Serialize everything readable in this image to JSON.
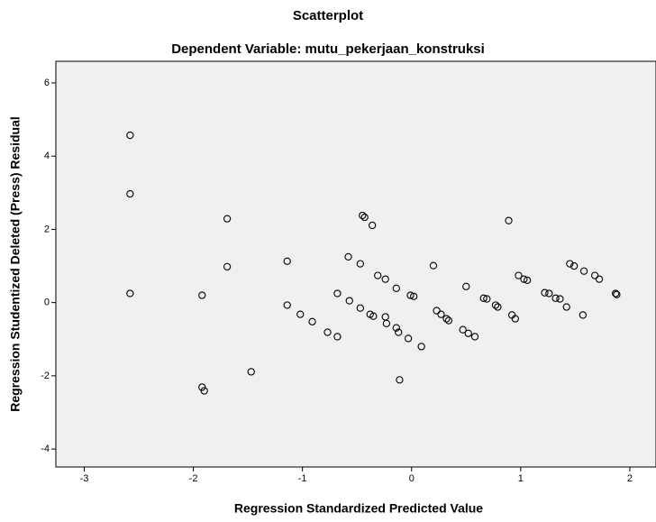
{
  "chart_data": {
    "type": "scatter",
    "title": "Scatterplot",
    "subtitle": "Dependent Variable: mutu_pekerjaan_konstruksi",
    "x_label": "Regression Standardized Predicted Value",
    "y_label": "Regression Studentized Deleted (Press) Residual",
    "xlim": [
      -3.26,
      2.24
    ],
    "ylim": [
      -4.49,
      6.59
    ],
    "xticks": [
      -3,
      -2,
      -1,
      0,
      1,
      2
    ],
    "yticks": [
      -4,
      -2,
      0,
      2,
      4,
      6
    ],
    "color": "#000000",
    "x": [
      -2.58,
      -2.58,
      -2.58,
      -1.92,
      -1.92,
      -1.9,
      -1.69,
      -1.69,
      -1.47,
      -1.14,
      -1.14,
      -1.02,
      -0.91,
      -0.77,
      -0.68,
      -0.68,
      -0.58,
      -0.57,
      -0.47,
      -0.45,
      -0.43,
      -0.36,
      -0.47,
      -0.38,
      -0.35,
      -0.31,
      -0.24,
      -0.24,
      -0.23,
      -0.14,
      -0.14,
      -0.12,
      -0.01,
      0.02,
      -0.11,
      -0.03,
      0.09,
      0.2,
      0.23,
      0.27,
      0.32,
      0.34,
      0.47,
      0.5,
      0.52,
      0.58,
      0.66,
      0.69,
      0.77,
      0.79,
      0.89,
      0.92,
      0.95,
      0.98,
      1.03,
      1.06,
      1.22,
      1.26,
      1.32,
      1.36,
      1.42,
      1.45,
      1.49,
      1.58,
      1.68,
      1.72,
      1.57,
      1.87,
      1.88
    ],
    "values": [
      4.57,
      2.97,
      0.25,
      0.2,
      -2.31,
      -2.41,
      2.29,
      0.98,
      -1.89,
      1.13,
      -0.07,
      -0.32,
      -0.52,
      -0.81,
      -0.93,
      0.25,
      1.25,
      0.05,
      1.06,
      2.38,
      2.33,
      2.11,
      -0.15,
      -0.32,
      -0.37,
      0.74,
      0.64,
      -0.39,
      -0.57,
      0.39,
      -0.69,
      -0.81,
      0.2,
      0.17,
      -2.11,
      -0.98,
      -1.2,
      1.01,
      -0.22,
      -0.32,
      -0.44,
      -0.49,
      -0.74,
      0.44,
      -0.84,
      -0.93,
      0.12,
      0.1,
      -0.07,
      -0.12,
      2.24,
      -0.34,
      -0.44,
      0.74,
      0.64,
      0.61,
      0.27,
      0.25,
      0.12,
      0.1,
      -0.12,
      1.06,
      1.0,
      0.86,
      0.74,
      0.64,
      -0.34,
      0.25,
      0.22
    ]
  }
}
